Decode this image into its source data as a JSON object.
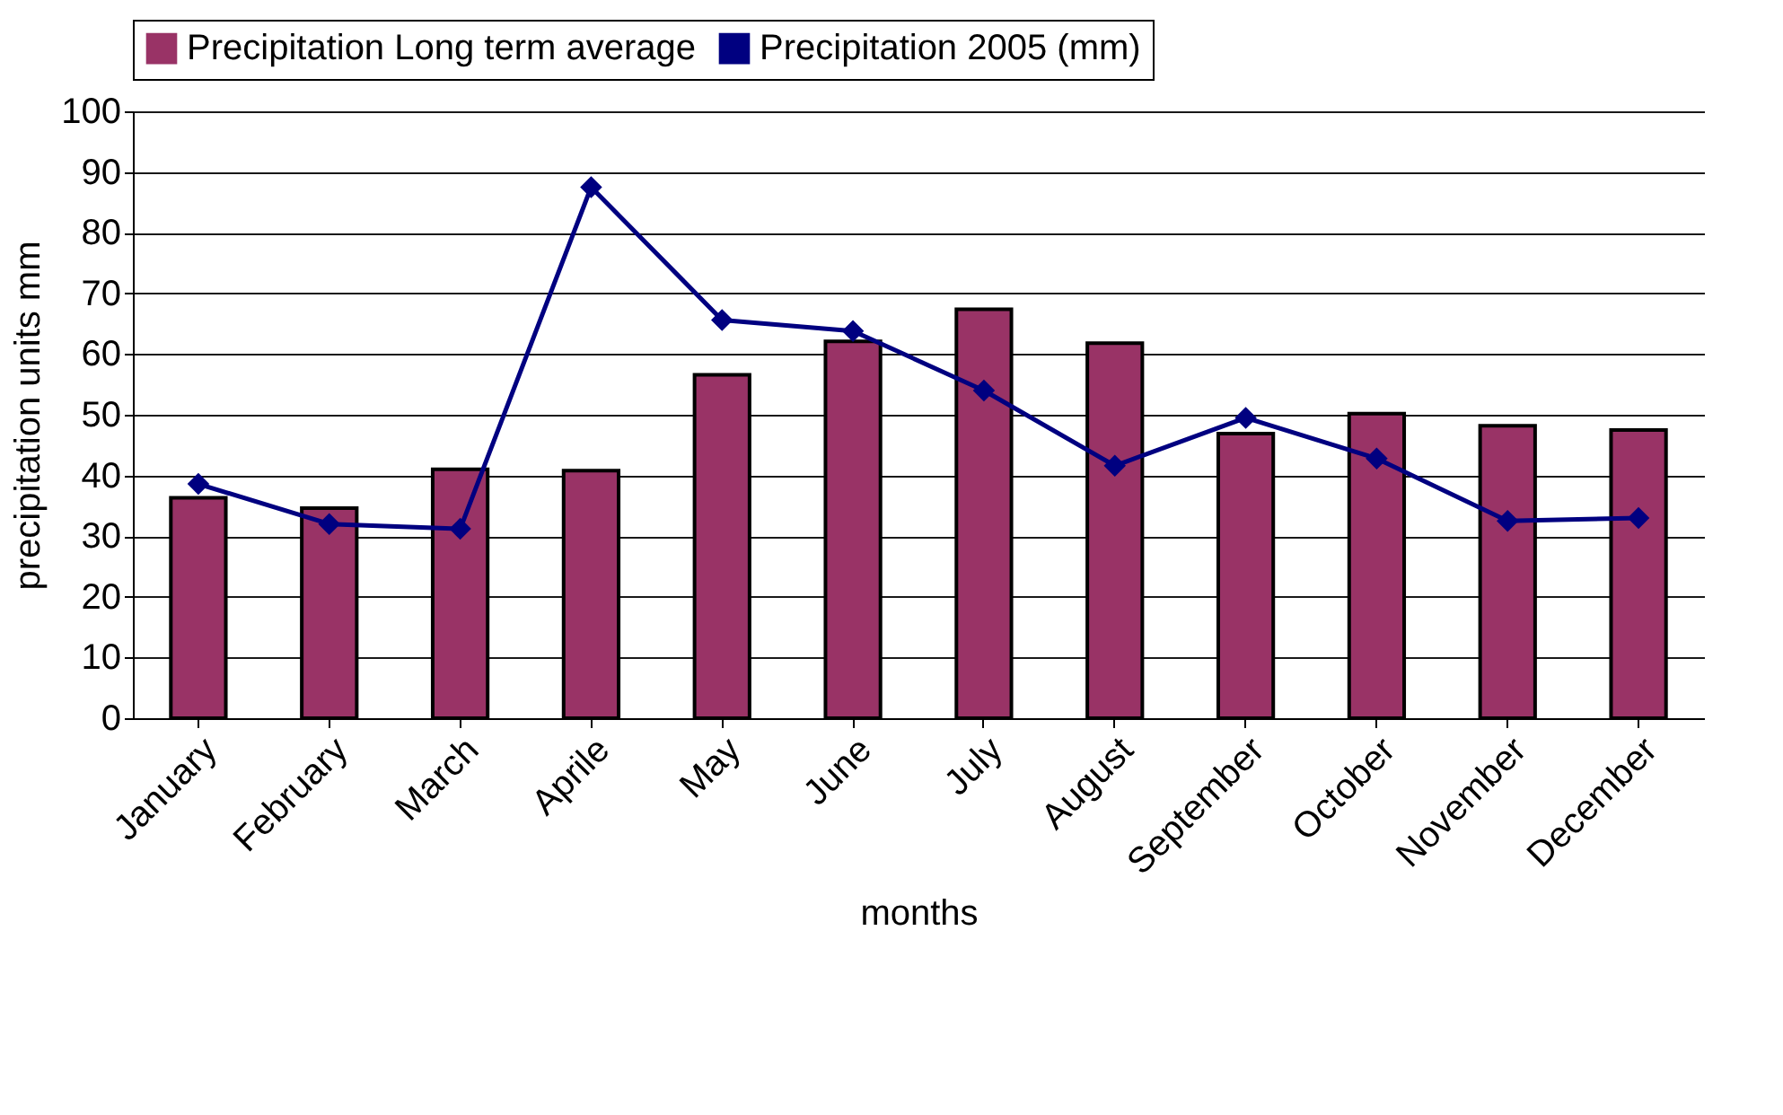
{
  "chart_data": {
    "type": "bar",
    "xlabel": "months",
    "ylabel": "precipitation units mm",
    "categories": [
      "January",
      "February",
      "March",
      "Aprile",
      "May",
      "June",
      "July",
      "August",
      "September",
      "October",
      "November",
      "December"
    ],
    "series": [
      {
        "name": "Precipitation Long term average",
        "color": "#993366",
        "values": [
          36.3,
          34.6,
          41,
          40.8,
          56.6,
          62.1,
          67.4,
          61.8,
          46.9,
          50.2,
          48.2,
          47.5
        ]
      },
      {
        "name": "Precipitation 2005 (mm)",
        "type": "line",
        "color": "#000080",
        "marker": "diamond",
        "values": [
          38.6,
          32,
          31.2,
          87.5,
          65.6,
          63.8,
          54,
          41.6,
          49.5,
          42.8,
          32.5,
          33
        ]
      }
    ],
    "ylim": [
      0,
      100
    ],
    "yticks": [
      0,
      10,
      20,
      30,
      40,
      50,
      60,
      70,
      80,
      90,
      100
    ],
    "grid": "y",
    "legend": "top"
  }
}
